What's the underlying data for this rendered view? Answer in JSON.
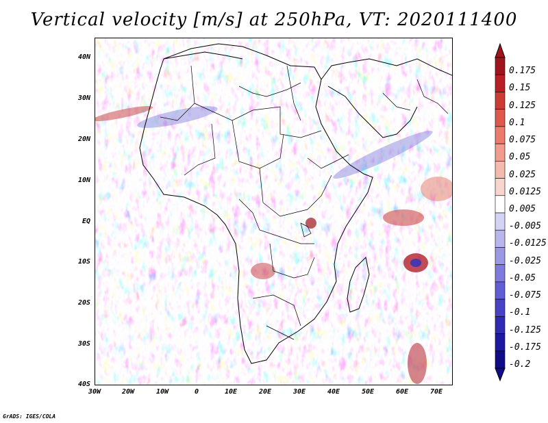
{
  "title": "Vertical velocity [m/s] at 250hPa, VT: 2020111400",
  "credit": "GrADS: IGES/COLA",
  "map": {
    "lat_labels": [
      "40N",
      "30N",
      "20N",
      "10N",
      "EQ",
      "10S",
      "20S",
      "30S",
      "40S"
    ],
    "lon_labels": [
      "30W",
      "20W",
      "10W",
      "0",
      "10E",
      "20E",
      "30E",
      "40E",
      "50E",
      "60E",
      "70E"
    ],
    "variable": "vertical velocity",
    "level": "250hPa",
    "valid_time": "2020111400"
  },
  "colorbar": {
    "labels": [
      "0.175",
      "0.15",
      "0.125",
      "0.1",
      "0.075",
      "0.05",
      "0.025",
      "0.0125",
      "0.005",
      "-0.005",
      "-0.0125",
      "-0.025",
      "-0.05",
      "-0.075",
      "-0.1",
      "-0.125",
      "-0.175",
      "-0.2"
    ],
    "colors": [
      "#a0141e",
      "#b91f24",
      "#cd3b35",
      "#de5a4e",
      "#ea7b6d",
      "#f19c8e",
      "#f5baae",
      "#f8d6cd",
      "#ffffff",
      "#d4d3f3",
      "#b8b6ec",
      "#9c99e4",
      "#7f7bdc",
      "#625ed3",
      "#4842c6",
      "#312bb4",
      "#1e1aa0",
      "#100c86"
    ]
  }
}
